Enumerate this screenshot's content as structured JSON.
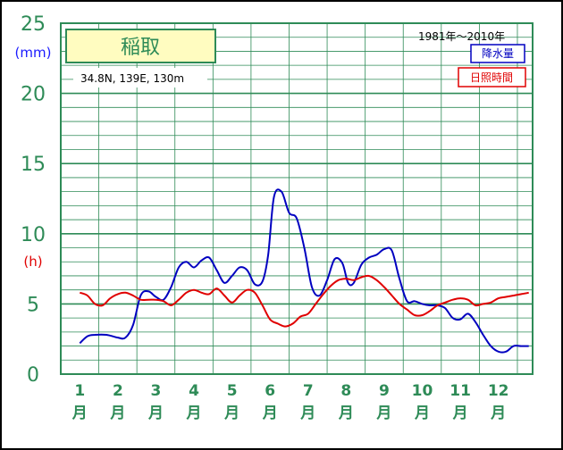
{
  "chart_data": {
    "type": "line",
    "title": "稲取",
    "location": "34.8N,  139E,  130m",
    "period": "1981年〜2010年",
    "y_unit_precip": "(mm)",
    "y_unit_sun": "(h)",
    "ylim": [
      0,
      25
    ],
    "yticks": [
      "0",
      "5",
      "10",
      "15",
      "20",
      "25"
    ],
    "x_top": [
      "1",
      "2",
      "3",
      "4",
      "5",
      "6",
      "7",
      "8",
      "9",
      "10",
      "11",
      "12"
    ],
    "x_bottom": [
      "月",
      "月",
      "月",
      "月",
      "月",
      "月",
      "月",
      "月",
      "月",
      "月",
      "月",
      "月"
    ],
    "series": [
      {
        "name": "降水量",
        "color": "#0000c0",
        "x": [
          1.0,
          1.2,
          1.4,
          1.7,
          2.0,
          2.2,
          2.4,
          2.6,
          2.8,
          3.0,
          3.2,
          3.4,
          3.6,
          3.8,
          4.0,
          4.2,
          4.4,
          4.6,
          4.8,
          5.0,
          5.2,
          5.4,
          5.6,
          5.8,
          5.95,
          6.1,
          6.3,
          6.5,
          6.7,
          6.9,
          7.1,
          7.3,
          7.5,
          7.7,
          7.9,
          8.05,
          8.2,
          8.4,
          8.6,
          8.8,
          9.0,
          9.2,
          9.4,
          9.6,
          9.8,
          10.0,
          10.2,
          10.4,
          10.6,
          10.8,
          11.0,
          11.2,
          11.4,
          11.6,
          11.8,
          12.0,
          12.2,
          12.4,
          12.6,
          12.8
        ],
        "values": [
          2.2,
          2.7,
          2.8,
          2.8,
          2.6,
          2.6,
          3.5,
          5.6,
          5.9,
          5.5,
          5.3,
          6.2,
          7.6,
          8.0,
          7.6,
          8.1,
          8.3,
          7.4,
          6.5,
          7.0,
          7.6,
          7.4,
          6.4,
          6.6,
          8.5,
          12.6,
          13.0,
          11.5,
          11.1,
          9.0,
          6.2,
          5.6,
          6.7,
          8.2,
          7.9,
          6.5,
          6.5,
          7.8,
          8.3,
          8.5,
          8.9,
          8.8,
          6.8,
          5.2,
          5.2,
          5.0,
          4.9,
          4.9,
          4.7,
          4.0,
          3.9,
          4.3,
          3.7,
          2.8,
          2.0,
          1.6,
          1.6,
          2.0,
          2.0,
          2.0
        ]
      },
      {
        "name": "日照時間",
        "color": "#e00000",
        "x": [
          1.0,
          1.2,
          1.4,
          1.6,
          1.8,
          2.0,
          2.2,
          2.4,
          2.6,
          2.8,
          3.0,
          3.2,
          3.4,
          3.6,
          3.8,
          4.0,
          4.2,
          4.4,
          4.6,
          4.8,
          5.0,
          5.2,
          5.4,
          5.6,
          5.8,
          6.0,
          6.2,
          6.4,
          6.6,
          6.8,
          7.0,
          7.2,
          7.4,
          7.6,
          7.8,
          8.0,
          8.2,
          8.4,
          8.6,
          8.8,
          9.0,
          9.2,
          9.4,
          9.6,
          9.8,
          10.0,
          10.2,
          10.4,
          10.6,
          10.8,
          11.0,
          11.2,
          11.4,
          11.6,
          11.8,
          12.0,
          12.2,
          12.4,
          12.6,
          12.8
        ],
        "values": [
          5.8,
          5.6,
          5.0,
          4.9,
          5.4,
          5.7,
          5.8,
          5.6,
          5.3,
          5.3,
          5.3,
          5.2,
          4.9,
          5.3,
          5.8,
          6.0,
          5.8,
          5.7,
          6.1,
          5.6,
          5.1,
          5.6,
          6.0,
          5.8,
          4.9,
          3.9,
          3.6,
          3.4,
          3.6,
          4.1,
          4.3,
          5.0,
          5.7,
          6.3,
          6.7,
          6.8,
          6.7,
          6.9,
          7.0,
          6.7,
          6.2,
          5.6,
          5.0,
          4.6,
          4.2,
          4.2,
          4.5,
          4.9,
          5.1,
          5.3,
          5.4,
          5.3,
          4.9,
          5.0,
          5.1,
          5.4,
          5.5,
          5.6,
          5.7,
          5.8
        ]
      }
    ],
    "legend_position": "top-right"
  }
}
